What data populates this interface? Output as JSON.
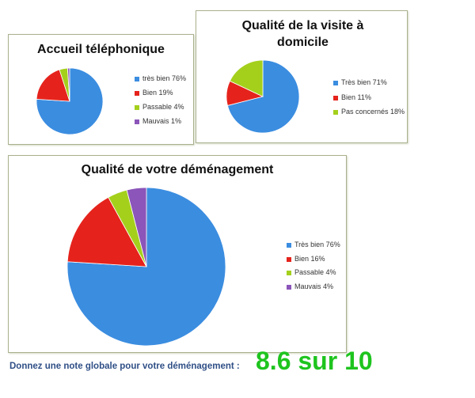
{
  "chart_data": [
    {
      "type": "pie",
      "title": "Accueil téléphonique",
      "categories": [
        "très bien 76%",
        "Bien 19%",
        "Passable 4%",
        "Mauvais 1%"
      ],
      "values": [
        76,
        19,
        4,
        1
      ],
      "colors": [
        "#3b8de0",
        "#e5231c",
        "#a4d01c",
        "#8b55b9"
      ]
    },
    {
      "type": "pie",
      "title": "Qualité de la visite à domicile",
      "categories": [
        "Très bien 71%",
        "Bien 11%",
        "Pas concernés 18%"
      ],
      "values": [
        71,
        11,
        18
      ],
      "colors": [
        "#3b8de0",
        "#e5231c",
        "#a4d01c"
      ]
    },
    {
      "type": "pie",
      "title": "Qualité de votre déménagement",
      "categories": [
        "Très bien 76%",
        "Bien 16%",
        "Passable 4%",
        "Mauvais 4%"
      ],
      "values": [
        76,
        16,
        4,
        4
      ],
      "colors": [
        "#3b8de0",
        "#e5231c",
        "#a4d01c",
        "#8b55b9"
      ]
    }
  ],
  "footer": {
    "label": "Donnez une note globale pour votre déménagement :",
    "score": "8.6 sur 10"
  }
}
